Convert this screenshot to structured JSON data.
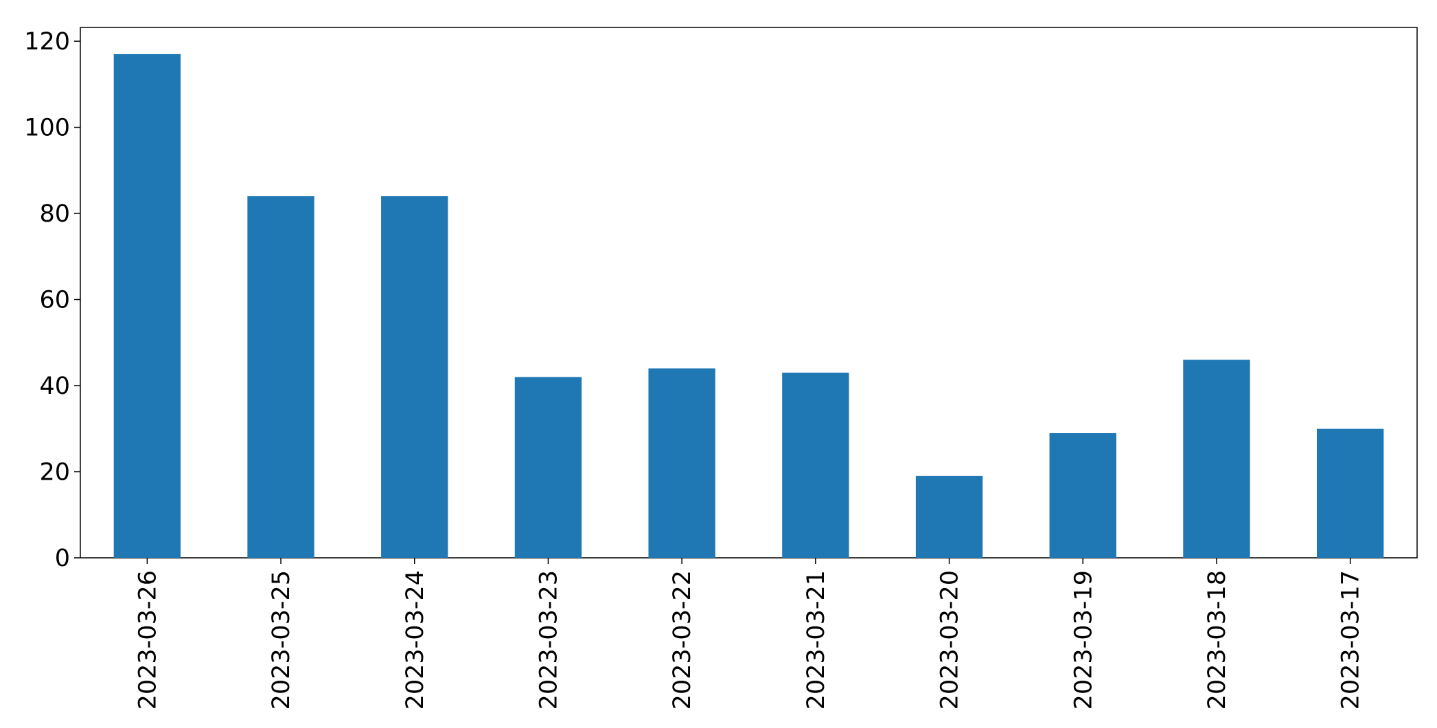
{
  "chart_data": {
    "type": "bar",
    "categories": [
      "2023-03-26",
      "2023-03-25",
      "2023-03-24",
      "2023-03-23",
      "2023-03-22",
      "2023-03-21",
      "2023-03-20",
      "2023-03-19",
      "2023-03-18",
      "2023-03-17"
    ],
    "values": [
      117,
      84,
      84,
      42,
      44,
      43,
      19,
      29,
      46,
      30
    ],
    "color": "#1f77b4",
    "ylim": [
      0,
      123.2
    ],
    "yticks": [
      0,
      20,
      40,
      60,
      80,
      100,
      120
    ],
    "grid": false
  }
}
